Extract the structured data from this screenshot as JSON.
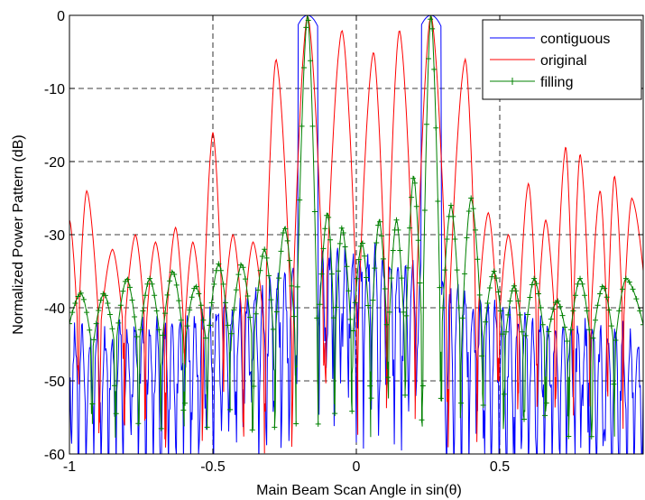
{
  "chart_data": {
    "type": "line",
    "title": "",
    "xlabel": "Main Beam Scan Angle in sin(θ)",
    "ylabel": "Normalized Power Pattern (dB)",
    "xlim": [
      -1,
      1
    ],
    "ylim": [
      -60,
      0
    ],
    "xticks": [
      -1,
      -0.5,
      0,
      0.5
    ],
    "xtick_labels": [
      "-1",
      "-0.5",
      "0",
      "0.5"
    ],
    "yticks": [
      0,
      -10,
      -20,
      -30,
      -40,
      -50,
      -60
    ],
    "ytick_labels": [
      "0",
      "-10",
      "-20",
      "-30",
      "-40",
      "-50",
      "-60"
    ],
    "grid": true,
    "legend_position": "top-right",
    "main_lobes": [
      -0.17,
      0.26
    ],
    "series": [
      {
        "name": "contiguous",
        "color": "#0000ff",
        "marker": "none",
        "sidelobe_envelope": [
          [
            -1,
            -44
          ],
          [
            -0.6,
            -42
          ],
          [
            -0.3,
            -37
          ],
          [
            -0.1,
            -33
          ],
          [
            0.1,
            -33
          ],
          [
            0.3,
            -37
          ],
          [
            0.6,
            -42
          ],
          [
            1,
            -44
          ]
        ]
      },
      {
        "name": "original",
        "color": "#ff0000",
        "marker": "none",
        "peaks": [
          [
            -1.0,
            -28
          ],
          [
            -0.94,
            -24
          ],
          [
            -0.85,
            -32
          ],
          [
            -0.77,
            -30
          ],
          [
            -0.7,
            -31
          ],
          [
            -0.63,
            -29
          ],
          [
            -0.57,
            -31
          ],
          [
            -0.5,
            -16
          ],
          [
            -0.43,
            -30
          ],
          [
            -0.36,
            -31
          ],
          [
            -0.28,
            -6
          ],
          [
            -0.17,
            0
          ],
          [
            -0.05,
            -2
          ],
          [
            0.06,
            -5
          ],
          [
            0.15,
            -2
          ],
          [
            0.26,
            0
          ],
          [
            0.38,
            -6
          ],
          [
            0.46,
            -27
          ],
          [
            0.53,
            -30
          ],
          [
            0.6,
            -23
          ],
          [
            0.66,
            -28
          ],
          [
            0.73,
            -18
          ],
          [
            0.78,
            -19
          ],
          [
            0.85,
            -24
          ],
          [
            0.9,
            -22
          ],
          [
            0.96,
            -25
          ]
        ]
      },
      {
        "name": "filling",
        "color": "#008000",
        "marker": "+",
        "peaks": [
          [
            -0.96,
            -38
          ],
          [
            -0.88,
            -38
          ],
          [
            -0.8,
            -36
          ],
          [
            -0.72,
            -36
          ],
          [
            -0.64,
            -35
          ],
          [
            -0.56,
            -37
          ],
          [
            -0.48,
            -34
          ],
          [
            -0.4,
            -34
          ],
          [
            -0.32,
            -32
          ],
          [
            -0.25,
            -29
          ],
          [
            -0.17,
            0
          ],
          [
            -0.1,
            -27
          ],
          [
            -0.05,
            -29
          ],
          [
            0.02,
            -31
          ],
          [
            0.08,
            -28
          ],
          [
            0.14,
            -28
          ],
          [
            0.2,
            -22
          ],
          [
            0.26,
            0
          ],
          [
            0.33,
            -26
          ],
          [
            0.4,
            -25
          ],
          [
            0.48,
            -35
          ],
          [
            0.55,
            -37
          ],
          [
            0.62,
            -36
          ],
          [
            0.7,
            -39
          ],
          [
            0.78,
            -36
          ],
          [
            0.86,
            -37
          ],
          [
            0.94,
            -36
          ]
        ]
      }
    ]
  }
}
